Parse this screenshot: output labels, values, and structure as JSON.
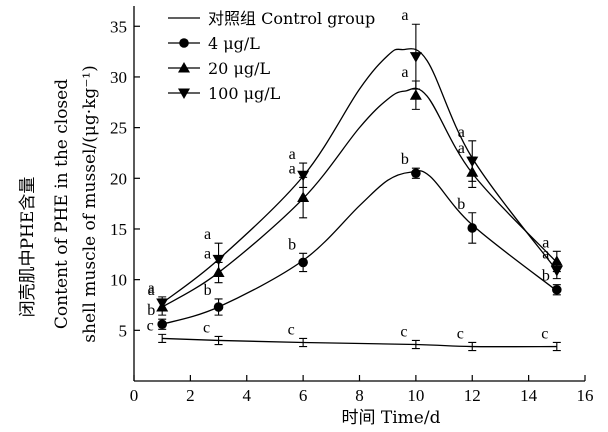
{
  "chart_data": {
    "type": "line",
    "xlabel": "时间 Time/d",
    "ylabel_cn": "闭壳肌中PHE含量",
    "ylabel_en_line1": "Content of PHE in the closed",
    "ylabel_en_line2": "shell muscle of mussel/(μg·kg⁻¹)",
    "xlim": [
      0,
      16
    ],
    "ylim": [
      0,
      37
    ],
    "xticks": [
      "0",
      "2",
      "4",
      "6",
      "8",
      "10",
      "12",
      "14",
      "16"
    ],
    "yticks": [
      "5",
      "10",
      "15",
      "20",
      "25",
      "30",
      "35"
    ],
    "legend_placement": "top-left",
    "series": [
      {
        "name": "对照组 Control group",
        "marker": "none",
        "x": [
          1,
          3,
          6,
          10,
          12,
          15
        ],
        "y": [
          4.2,
          4.0,
          3.8,
          3.6,
          3.4,
          3.4
        ],
        "err": [
          0.4,
          0.4,
          0.4,
          0.4,
          0.4,
          0.4
        ],
        "sig": [
          "c",
          "c",
          "c",
          "c",
          "c",
          "c"
        ]
      },
      {
        "name": "4 μg/L",
        "marker": "circle",
        "x": [
          1,
          3,
          6,
          10,
          12,
          15
        ],
        "y": [
          5.6,
          7.3,
          11.7,
          20.5,
          15.1,
          9.0
        ],
        "err": [
          0.5,
          0.8,
          0.9,
          0.5,
          1.5,
          0.5
        ],
        "sig": [
          "b",
          "b",
          "b",
          "b",
          "b",
          "b"
        ]
      },
      {
        "name": "20 μg/L",
        "marker": "triangle-up",
        "x": [
          1,
          3,
          6,
          10,
          12,
          15
        ],
        "y": [
          7.3,
          10.7,
          18.1,
          28.2,
          20.6,
          11.8
        ],
        "err": [
          0.8,
          1.0,
          2.0,
          1.4,
          1.5,
          1.0
        ],
        "sig": [
          "a",
          "a",
          "a",
          "a",
          "a",
          "a"
        ]
      },
      {
        "name": "100 μg/L",
        "marker": "triangle-down",
        "x": [
          1,
          3,
          6,
          10,
          12,
          15
        ],
        "y": [
          7.7,
          12.0,
          20.3,
          32.0,
          21.7,
          10.9
        ],
        "err": [
          0.6,
          1.6,
          1.2,
          3.2,
          2.0,
          0.8
        ],
        "sig": [
          "a",
          "a",
          "a",
          "a",
          "a",
          "a"
        ]
      }
    ],
    "fit_curves": [
      {
        "series": "对照组 Control group",
        "x": [
          1,
          3,
          6,
          10,
          12,
          15
        ],
        "y": [
          4.2,
          4.0,
          3.8,
          3.6,
          3.4,
          3.4
        ]
      },
      {
        "series": "4 μg/L",
        "x": [
          1,
          3,
          6,
          8,
          9,
          9.8,
          10.5,
          12,
          15
        ],
        "y": [
          5.6,
          7.3,
          11.9,
          17.3,
          19.8,
          20.6,
          20.2,
          15.4,
          8.9
        ]
      },
      {
        "series": "20 μg/L",
        "x": [
          1,
          3,
          6,
          8,
          9,
          9.6,
          10.4,
          12,
          15
        ],
        "y": [
          7.3,
          10.7,
          18.0,
          25.0,
          27.8,
          28.6,
          28.1,
          20.5,
          11.7
        ]
      },
      {
        "series": "100 μg/L",
        "x": [
          1,
          3,
          6,
          8,
          9,
          9.5,
          10.4,
          12,
          15
        ],
        "y": [
          7.7,
          12.0,
          20.2,
          28.8,
          32.1,
          32.7,
          31.6,
          22.0,
          10.9
        ]
      }
    ]
  }
}
